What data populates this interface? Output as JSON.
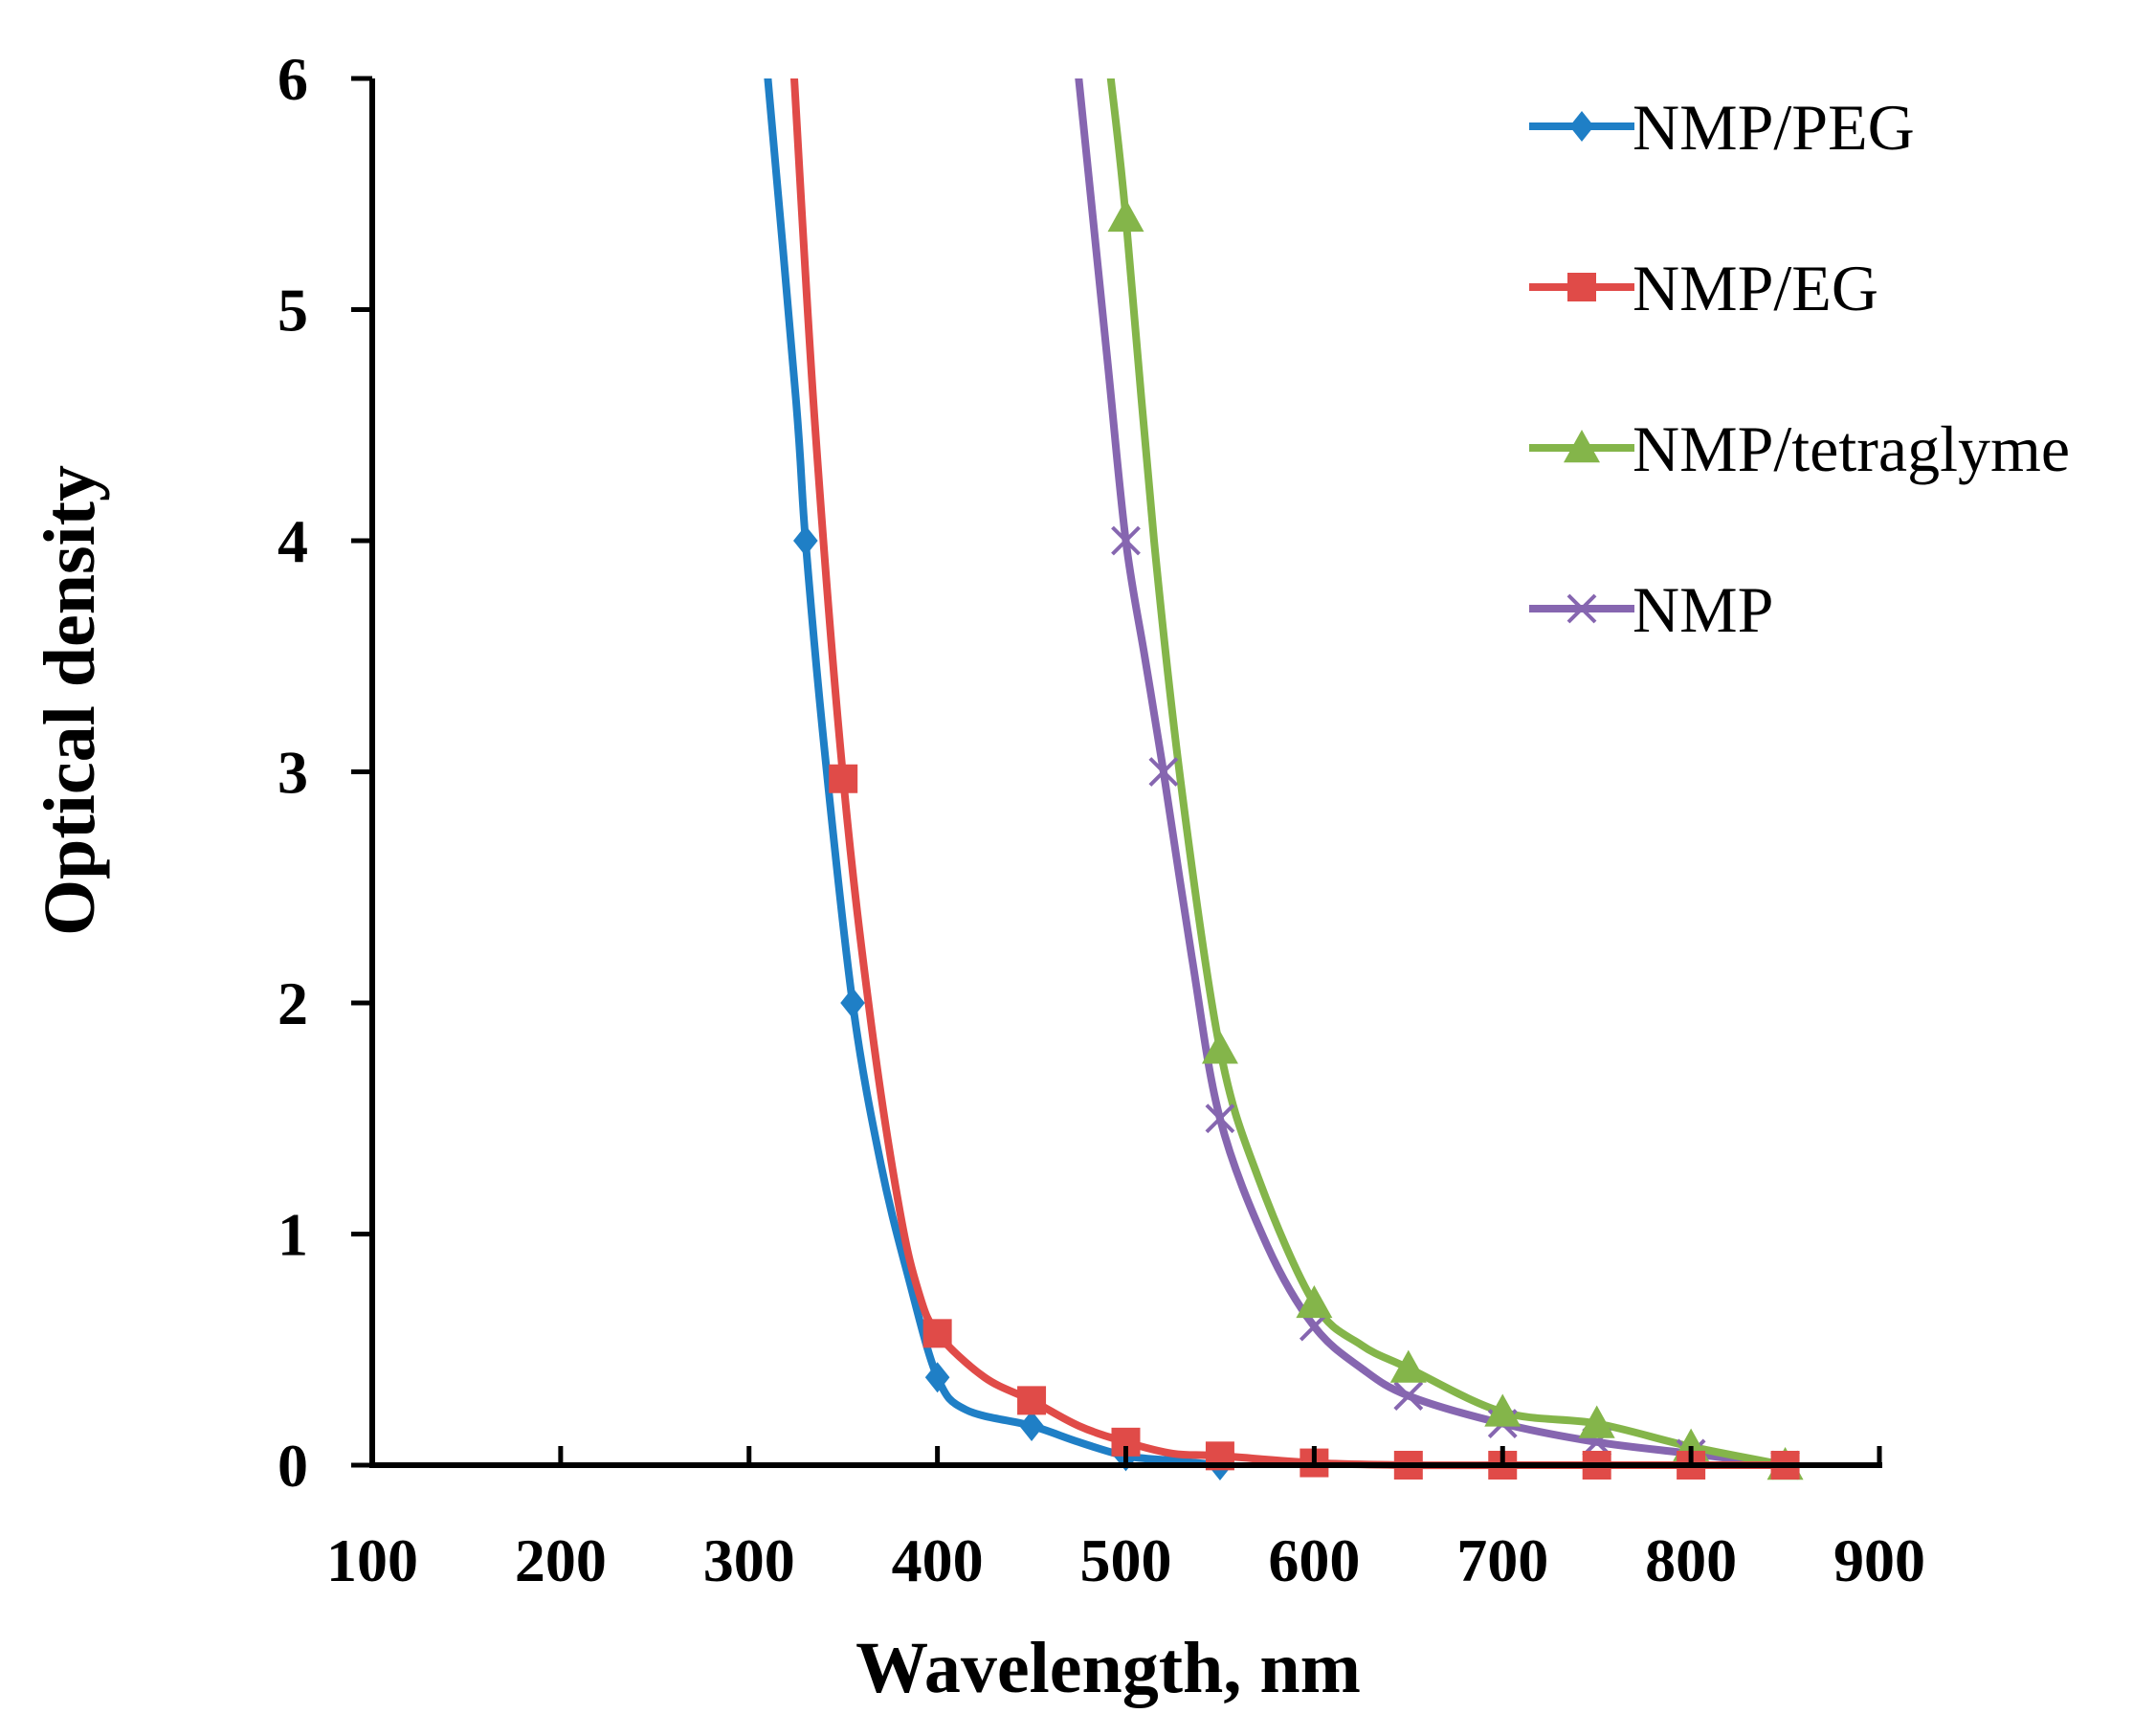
{
  "chart_data": {
    "type": "line",
    "title": "",
    "xlabel": "Wavelength, nm",
    "ylabel": "Optical density",
    "xlim": [
      100,
      900
    ],
    "ylim": [
      0,
      6
    ],
    "xticks": [
      100,
      200,
      300,
      400,
      500,
      600,
      700,
      800,
      900
    ],
    "yticks": [
      0,
      1,
      2,
      3,
      4,
      5,
      6
    ],
    "xtick_labels": [
      "100",
      "200",
      "300",
      "400",
      "500",
      "600",
      "700",
      "800",
      "900"
    ],
    "ytick_labels": [
      "0",
      "1",
      "2",
      "3",
      "4",
      "5",
      "6"
    ],
    "grid": false,
    "legend_position": "top-right",
    "series": [
      {
        "name": "NMP/PEG",
        "color": "#1f7fc6",
        "marker": "diamond",
        "curve": [
          [
            310,
            6.0
          ],
          [
            325,
            4.6
          ],
          [
            330,
            4.0
          ],
          [
            340,
            3.1
          ],
          [
            355,
            2.0
          ],
          [
            370,
            1.3
          ],
          [
            385,
            0.8
          ],
          [
            400,
            0.38
          ],
          [
            415,
            0.24
          ],
          [
            450,
            0.17
          ],
          [
            475,
            0.1
          ],
          [
            500,
            0.04
          ],
          [
            525,
            0.02
          ],
          [
            550,
            0.0
          ]
        ],
        "points": [
          [
            330,
            4.0
          ],
          [
            355,
            2.0
          ],
          [
            400,
            0.38
          ],
          [
            450,
            0.17
          ],
          [
            500,
            0.04
          ],
          [
            550,
            0.0
          ]
        ]
      },
      {
        "name": "NMP/EG",
        "color": "#e04b48",
        "marker": "square",
        "curve": [
          [
            324,
            6.0
          ],
          [
            335,
            4.5
          ],
          [
            350,
            2.97
          ],
          [
            365,
            1.9
          ],
          [
            380,
            1.1
          ],
          [
            390,
            0.75
          ],
          [
            400,
            0.57
          ],
          [
            425,
            0.38
          ],
          [
            450,
            0.28
          ],
          [
            475,
            0.17
          ],
          [
            500,
            0.1
          ],
          [
            525,
            0.05
          ],
          [
            550,
            0.04
          ],
          [
            600,
            0.01
          ],
          [
            650,
            0.0
          ],
          [
            700,
            0.0
          ],
          [
            750,
            0.0
          ],
          [
            800,
            0.0
          ],
          [
            850,
            0.0
          ]
        ],
        "points": [
          [
            350,
            2.97
          ],
          [
            400,
            0.57
          ],
          [
            450,
            0.28
          ],
          [
            500,
            0.1
          ],
          [
            550,
            0.04
          ],
          [
            600,
            0.01
          ],
          [
            650,
            0.0
          ],
          [
            700,
            0.0
          ],
          [
            750,
            0.0
          ],
          [
            800,
            0.0
          ],
          [
            850,
            0.0
          ]
        ]
      },
      {
        "name": "NMP/tetraglyme",
        "color": "#84b54a",
        "marker": "triangle",
        "curve": [
          [
            492,
            6.0
          ],
          [
            500,
            5.4
          ],
          [
            515,
            4.0
          ],
          [
            530,
            2.9
          ],
          [
            550,
            1.8
          ],
          [
            570,
            1.25
          ],
          [
            600,
            0.7
          ],
          [
            625,
            0.52
          ],
          [
            650,
            0.42
          ],
          [
            700,
            0.23
          ],
          [
            750,
            0.18
          ],
          [
            800,
            0.08
          ],
          [
            850,
            0.0
          ]
        ],
        "points": [
          [
            500,
            5.4
          ],
          [
            550,
            1.8
          ],
          [
            600,
            0.7
          ],
          [
            650,
            0.42
          ],
          [
            700,
            0.23
          ],
          [
            750,
            0.18
          ],
          [
            800,
            0.08
          ],
          [
            850,
            0.0
          ]
        ]
      },
      {
        "name": "NMP",
        "color": "#8666b0",
        "marker": "x",
        "curve": [
          [
            475,
            6.0
          ],
          [
            490,
            4.8
          ],
          [
            500,
            4.0
          ],
          [
            510,
            3.5
          ],
          [
            520,
            3.0
          ],
          [
            535,
            2.2
          ],
          [
            550,
            1.5
          ],
          [
            575,
            0.95
          ],
          [
            600,
            0.6
          ],
          [
            625,
            0.42
          ],
          [
            650,
            0.3
          ],
          [
            700,
            0.18
          ],
          [
            750,
            0.1
          ],
          [
            800,
            0.05
          ],
          [
            850,
            0.0
          ]
        ],
        "points": [
          [
            500,
            4.0
          ],
          [
            520,
            3.0
          ],
          [
            550,
            1.5
          ],
          [
            600,
            0.6
          ],
          [
            650,
            0.3
          ],
          [
            700,
            0.18
          ],
          [
            750,
            0.1
          ],
          [
            800,
            0.05
          ],
          [
            850,
            0.0
          ]
        ]
      }
    ]
  }
}
